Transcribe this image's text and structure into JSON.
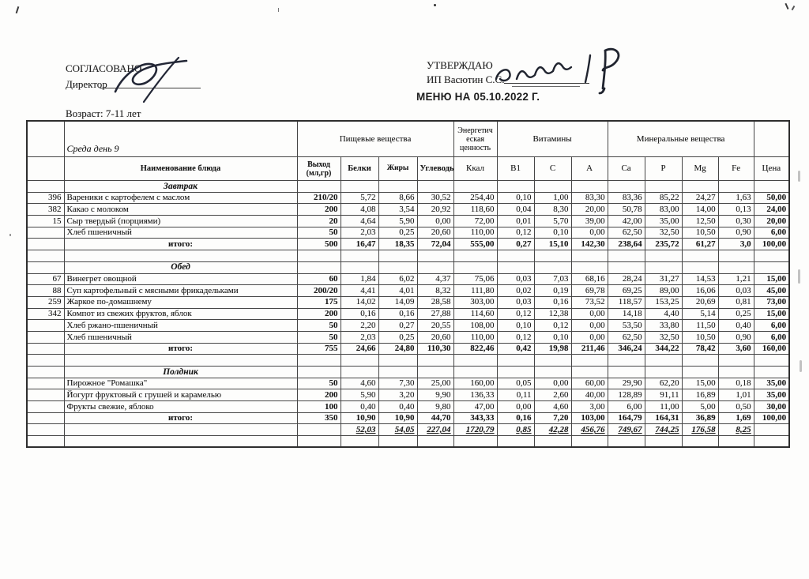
{
  "approval": {
    "left_label": "СОГЛАСОВАНО",
    "left_role": "Директор",
    "right_label": "УТВЕРЖДАЮ",
    "right_name": "ИП Васютин С.С."
  },
  "title": "МЕНЮ НА 05.10.2022 Г.",
  "age": "Возраст: 7-11 лет",
  "menu_table": {
    "day_label": "Среда день 9",
    "group_headers": {
      "food": "Пищевые вещества",
      "energy": "Энергетич еская ценность",
      "vitamins": "Витамины",
      "minerals": "Минеральные вещества"
    },
    "col_headers": [
      "Наименование блюда",
      "Выход (мл,гр)",
      "Белки",
      "Жиры",
      "Углеводы",
      "Ккал",
      "B1",
      "C",
      "A",
      "Ca",
      "P",
      "Mg",
      "Fe",
      "Цена"
    ],
    "totals_label": "итого:",
    "sections": [
      {
        "title": "Завтрак",
        "rows": [
          {
            "num": "396",
            "name": "Вареники с картофелем с маслом",
            "values": [
              "210/20",
              "5,72",
              "8,66",
              "30,52",
              "254,40",
              "0,10",
              "1,00",
              "83,30",
              "83,36",
              "85,22",
              "24,27",
              "1,63",
              "50,00"
            ]
          },
          {
            "num": "382",
            "name": "Какао с молоком",
            "values": [
              "200",
              "4,08",
              "3,54",
              "20,92",
              "118,60",
              "0,04",
              "8,30",
              "20,00",
              "50,78",
              "83,00",
              "14,00",
              "0,13",
              "24,00"
            ]
          },
          {
            "num": "15",
            "name": "Сыр твердый (порциями)",
            "values": [
              "20",
              "4,64",
              "5,90",
              "0,00",
              "72,00",
              "0,01",
              "5,70",
              "39,00",
              "42,00",
              "35,00",
              "12,50",
              "0,30",
              "20,00"
            ]
          },
          {
            "num": "",
            "name": "Хлеб пшеничный",
            "values": [
              "50",
              "2,03",
              "0,25",
              "20,60",
              "110,00",
              "0,12",
              "0,10",
              "0,00",
              "62,50",
              "32,50",
              "10,50",
              "0,90",
              "6,00"
            ]
          }
        ],
        "total": [
          "500",
          "16,47",
          "18,35",
          "72,04",
          "555,00",
          "0,27",
          "15,10",
          "142,30",
          "238,64",
          "235,72",
          "61,27",
          "3,0",
          "100,00"
        ]
      },
      {
        "title": "Обед",
        "rows": [
          {
            "num": "67",
            "name": "Винегрет овощной",
            "values": [
              "60",
              "1,84",
              "6,02",
              "4,37",
              "75,06",
              "0,03",
              "7,03",
              "68,16",
              "28,24",
              "31,27",
              "14,53",
              "1,21",
              "15,00"
            ]
          },
          {
            "num": "88",
            "name": "Суп картофельный с мясными фрикадельками",
            "values": [
              "200/20",
              "4,41",
              "4,01",
              "8,32",
              "111,80",
              "0,02",
              "0,19",
              "69,78",
              "69,25",
              "89,00",
              "16,06",
              "0,03",
              "45,00"
            ]
          },
          {
            "num": "259",
            "name": "Жаркое по-домашнему",
            "values": [
              "175",
              "14,02",
              "14,09",
              "28,58",
              "303,00",
              "0,03",
              "0,16",
              "73,52",
              "118,57",
              "153,25",
              "20,69",
              "0,81",
              "73,00"
            ]
          },
          {
            "num": "342",
            "name": "Компот из свежих фруктов, яблок",
            "values": [
              "200",
              "0,16",
              "0,16",
              "27,88",
              "114,60",
              "0,12",
              "12,38",
              "0,00",
              "14,18",
              "4,40",
              "5,14",
              "0,25",
              "15,00"
            ]
          },
          {
            "num": "",
            "name": "Хлеб ржано-пшеничный",
            "values": [
              "50",
              "2,20",
              "0,27",
              "20,55",
              "108,00",
              "0,10",
              "0,12",
              "0,00",
              "53,50",
              "33,80",
              "11,50",
              "0,40",
              "6,00"
            ]
          },
          {
            "num": "",
            "name": "Хлеб пшеничный",
            "values": [
              "50",
              "2,03",
              "0,25",
              "20,60",
              "110,00",
              "0,12",
              "0,10",
              "0,00",
              "62,50",
              "32,50",
              "10,50",
              "0,90",
              "6,00"
            ]
          }
        ],
        "total": [
          "755",
          "24,66",
          "24,80",
          "110,30",
          "822,46",
          "0,42",
          "19,98",
          "211,46",
          "346,24",
          "344,22",
          "78,42",
          "3,60",
          "160,00"
        ]
      },
      {
        "title": "Полдник",
        "rows": [
          {
            "num": "",
            "name": "Пирожное \"Ромашка\"",
            "values": [
              "50",
              "4,60",
              "7,30",
              "25,00",
              "160,00",
              "0,05",
              "0,00",
              "60,00",
              "29,90",
              "62,20",
              "15,00",
              "0,18",
              "35,00"
            ]
          },
          {
            "num": "",
            "name": "Йогурт фруктовый с грушей и карамелью",
            "values": [
              "200",
              "5,90",
              "3,20",
              "9,90",
              "136,33",
              "0,11",
              "2,60",
              "40,00",
              "128,89",
              "91,11",
              "16,89",
              "1,01",
              "35,00"
            ]
          },
          {
            "num": "",
            "name": "Фрукты свежие, яблоко",
            "values": [
              "100",
              "0,40",
              "0,40",
              "9,80",
              "47,00",
              "0,00",
              "4,60",
              "3,00",
              "6,00",
              "11,00",
              "5,00",
              "0,50",
              "30,00"
            ]
          }
        ],
        "total": [
          "350",
          "10,90",
          "10,90",
          "44,70",
          "343,33",
          "0,16",
          "7,20",
          "103,00",
          "164,79",
          "164,31",
          "36,89",
          "1,69",
          "100,00"
        ]
      }
    ],
    "grand_total": [
      "",
      "52,03",
      "54,05",
      "227,04",
      "1720,79",
      "0,85",
      "42,28",
      "456,76",
      "749,67",
      "744,25",
      "176,58",
      "8,25",
      ""
    ]
  }
}
